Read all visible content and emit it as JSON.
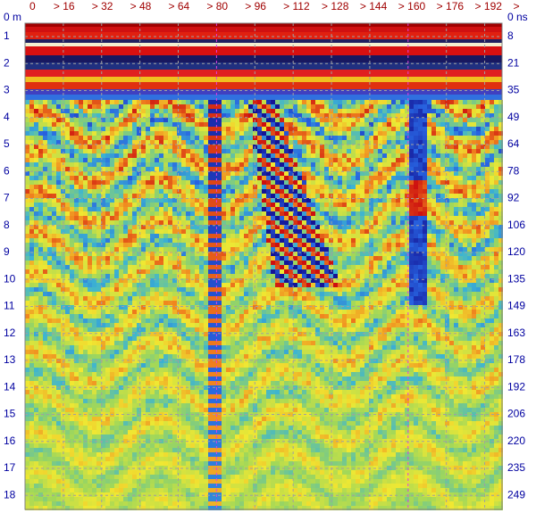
{
  "top_axis": {
    "labels": [
      "0",
      "> 16",
      "> 32",
      "> 48",
      "> 64",
      "> 80",
      "> 96",
      "> 112",
      "> 128",
      "> 144",
      "> 160",
      "> 176",
      "> 192",
      ">"
    ]
  },
  "depth_axis": {
    "labels": [
      "0 m",
      "1",
      "2",
      "3",
      "4",
      "5",
      "6",
      "7",
      "8",
      "9",
      "10",
      "11",
      "12",
      "13",
      "14",
      "15",
      "16",
      "17",
      "18"
    ]
  },
  "time_axis": {
    "labels": [
      "0 ns",
      "8",
      "21",
      "35",
      "49",
      "64",
      "78",
      "92",
      "106",
      "120",
      "135",
      "149",
      "163",
      "178",
      "192",
      "206",
      "220",
      "235",
      "249"
    ]
  }
}
